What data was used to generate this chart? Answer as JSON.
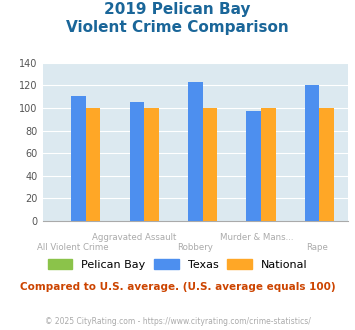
{
  "title_line1": "2019 Pelican Bay",
  "title_line2": "Violent Crime Comparison",
  "groups": [
    "All Violent Crime",
    "Aggravated Assault",
    "Robbery",
    "Murder & Mans...",
    "Rape"
  ],
  "pelican_bay": [
    0,
    0,
    0,
    0,
    0
  ],
  "texas": [
    111,
    105,
    123,
    97,
    120
  ],
  "national": [
    100,
    100,
    100,
    100,
    100
  ],
  "bar_color_pelican": "#8bc34a",
  "bar_color_texas": "#4d8fef",
  "bar_color_national": "#ffa726",
  "ylim": [
    0,
    140
  ],
  "yticks": [
    0,
    20,
    40,
    60,
    80,
    100,
    120,
    140
  ],
  "title_color": "#1a6699",
  "plot_bg": "#dce9f0",
  "footer_text": "Compared to U.S. average. (U.S. average equals 100)",
  "copyright_text": "© 2025 CityRating.com - https://www.cityrating.com/crime-statistics/",
  "legend_labels": [
    "Pelican Bay",
    "Texas",
    "National"
  ],
  "xlabel_color": "#aaaaaa",
  "footer_color": "#cc4400",
  "copyright_color": "#aaaaaa",
  "top_labels": {
    "1": "Aggravated Assault",
    "3": "Murder & Mans..."
  },
  "bottom_labels": {
    "0": "All Violent Crime",
    "2": "Robbery",
    "4": "Rape"
  }
}
